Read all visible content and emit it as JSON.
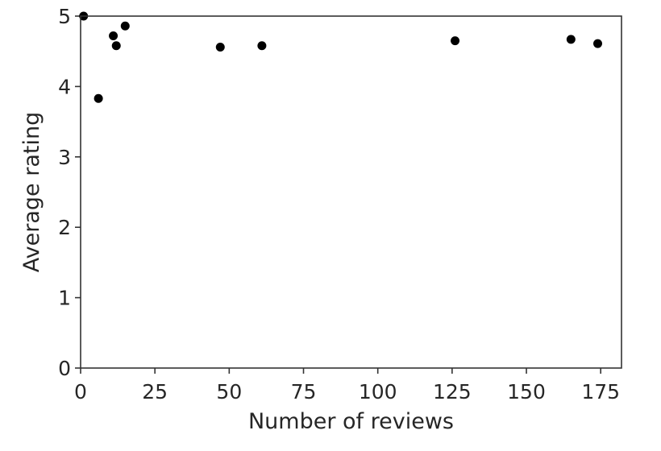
{
  "chart_data": {
    "type": "scatter",
    "title": "",
    "xlabel": "Number of reviews",
    "ylabel": "Average rating",
    "xlim": [
      0,
      182
    ],
    "ylim": [
      0,
      5
    ],
    "xticks": [
      0,
      25,
      50,
      75,
      100,
      125,
      150,
      175
    ],
    "yticks": [
      0,
      1,
      2,
      3,
      4,
      5
    ],
    "grid": false,
    "legend": "none",
    "marker_color": "#000000",
    "points": [
      {
        "x": 1,
        "y": 5.0
      },
      {
        "x": 6,
        "y": 3.83
      },
      {
        "x": 11,
        "y": 4.72
      },
      {
        "x": 12,
        "y": 4.58
      },
      {
        "x": 15,
        "y": 4.86
      },
      {
        "x": 47,
        "y": 4.56
      },
      {
        "x": 61,
        "y": 4.58
      },
      {
        "x": 126,
        "y": 4.65
      },
      {
        "x": 165,
        "y": 4.67
      },
      {
        "x": 174,
        "y": 4.61
      }
    ]
  }
}
